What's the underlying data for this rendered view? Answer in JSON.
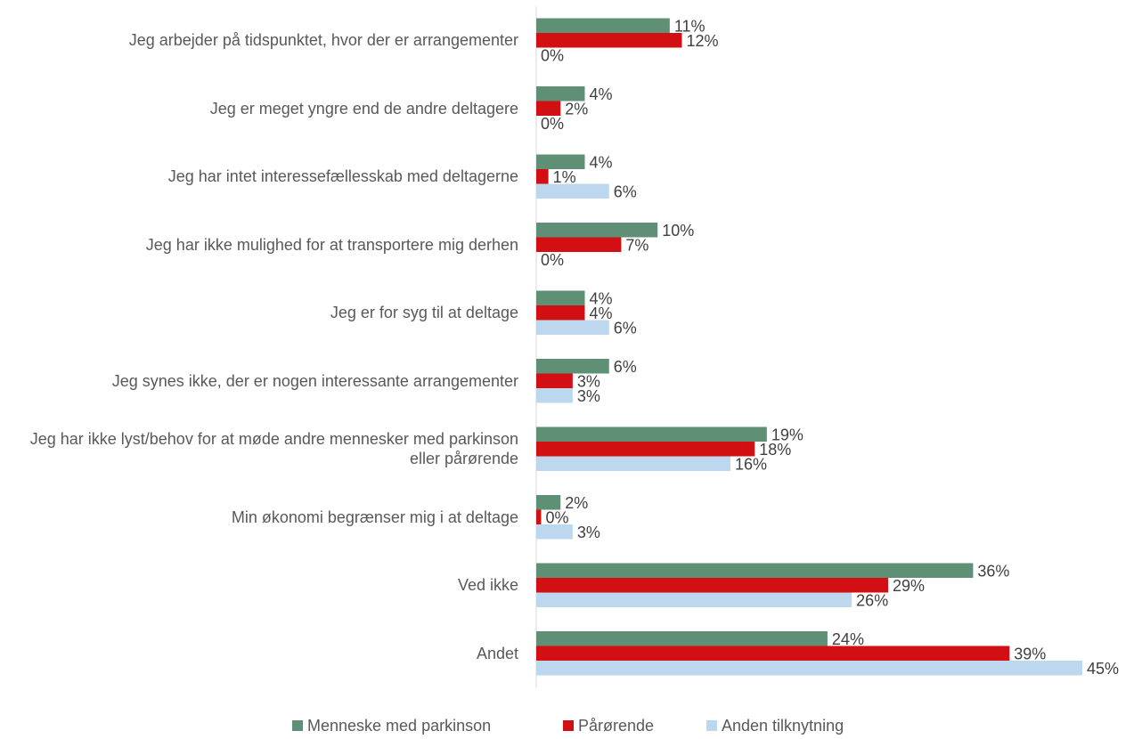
{
  "chart_data": {
    "type": "bar",
    "orientation": "horizontal",
    "categories": [
      "Jeg arbejder på tidspunktet, hvor der er arrangementer",
      "Jeg er meget yngre end de andre deltagere",
      "Jeg har intet interessefællesskab med deltagerne",
      "Jeg har ikke mulighed for at transportere mig derhen",
      "Jeg er for syg til at deltage",
      "Jeg synes ikke, der er nogen interessante arrangementer",
      "Jeg har ikke lyst/behov for at møde andre mennesker med parkinson eller pårørende",
      "Min økonomi begrænser mig i at deltage",
      "Ved ikke",
      "Andet"
    ],
    "series": [
      {
        "name": "Menneske med parkinson",
        "color": "#5f8f75",
        "values": [
          11,
          4,
          4,
          10,
          4,
          6,
          19,
          2,
          36,
          24
        ],
        "value_labels": [
          "11%",
          "4%",
          "4%",
          "10%",
          "4%",
          "6%",
          "19%",
          "2%",
          "36%",
          "24%"
        ]
      },
      {
        "name": "Pårørende",
        "color": "#d20f12",
        "values": [
          12,
          2,
          1,
          7,
          4,
          3,
          18,
          0.4,
          29,
          39
        ],
        "value_labels": [
          "12%",
          "2%",
          "1%",
          "7%",
          "4%",
          "3%",
          "18%",
          "0%",
          "29%",
          "39%"
        ]
      },
      {
        "name": "Anden tilknytning",
        "color": "#bdd7ee",
        "values": [
          0,
          0,
          6,
          0,
          6,
          3,
          16,
          3,
          26,
          45
        ],
        "value_labels": [
          "0%",
          "0%",
          "6%",
          "0%",
          "6%",
          "3%",
          "16%",
          "3%",
          "26%",
          "45%"
        ]
      }
    ],
    "xlim": [
      0,
      45
    ],
    "legend": "bottom"
  }
}
